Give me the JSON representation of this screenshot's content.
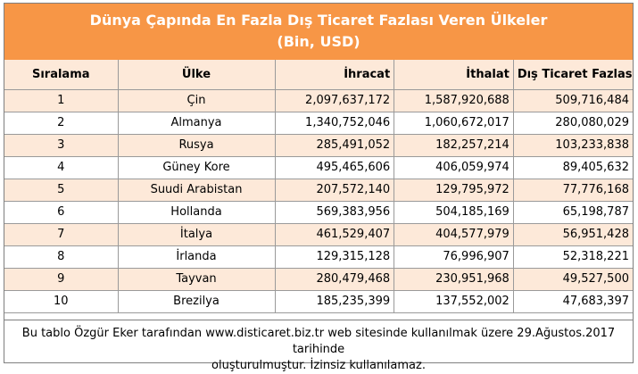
{
  "title": {
    "line1": "Dünya Çapında En Fazla Dış Ticaret Fazlası Veren Ülkeler",
    "line2": "(Bin, USD)"
  },
  "headers": [
    "Sıralama",
    "Ülke",
    "İhracat",
    "İthalat",
    "Dış Ticaret Fazlası"
  ],
  "rows": [
    {
      "rank": "1",
      "country": "Çin",
      "export": "2,097,637,172",
      "import": "1,587,920,688",
      "surplus": "509,716,484"
    },
    {
      "rank": "2",
      "country": "Almanya",
      "export": "1,340,752,046",
      "import": "1,060,672,017",
      "surplus": "280,080,029"
    },
    {
      "rank": "3",
      "country": "Rusya",
      "export": "285,491,052",
      "import": "182,257,214",
      "surplus": "103,233,838"
    },
    {
      "rank": "4",
      "country": "Güney Kore",
      "export": "495,465,606",
      "import": "406,059,974",
      "surplus": "89,405,632"
    },
    {
      "rank": "5",
      "country": "Suudi Arabistan",
      "export": "207,572,140",
      "import": "129,795,972",
      "surplus": "77,776,168"
    },
    {
      "rank": "6",
      "country": "Hollanda",
      "export": "569,383,956",
      "import": "504,185,169",
      "surplus": "65,198,787"
    },
    {
      "rank": "7",
      "country": "İtalya",
      "export": "461,529,407",
      "import": "404,577,979",
      "surplus": "56,951,428"
    },
    {
      "rank": "8",
      "country": "İrlanda",
      "export": "129,315,128",
      "import": "76,996,907",
      "surplus": "52,318,221"
    },
    {
      "rank": "9",
      "country": "Tayvan",
      "export": "280,479,468",
      "import": "230,951,968",
      "surplus": "49,527,500"
    },
    {
      "rank": "10",
      "country": "Brezilya",
      "export": "185,235,399",
      "import": "137,552,002",
      "surplus": "47,683,397"
    }
  ],
  "footer": {
    "line1": "Bu tablo Özgür Eker tarafından www.disticaret.biz.tr web sitesinde kullanılmak üzere 29.Ağustos.2017 tarihinde",
    "line2": "oluşturulmuştur. İzinsiz kullanılamaz."
  },
  "colors": {
    "header_fill": "#f79646",
    "band_fill": "#fde9d9"
  }
}
